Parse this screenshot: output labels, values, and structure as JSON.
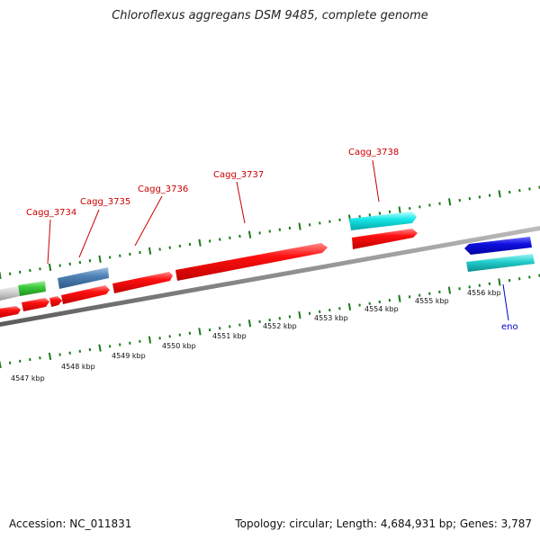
{
  "title": "Chloroflexus aggregans DSM 9485, complete genome",
  "footer": {
    "accession": "Accession: NC_011831",
    "topology": "Topology: circular; Length: 4,684,931 bp; Genes: 3,787"
  },
  "colors": {
    "cds": "#ff0000",
    "trna_like": "#00e5e5",
    "blue_gene": "#0000dd",
    "steel_gene": "#4a7db0",
    "green_gene": "#33cc33",
    "grey_gene": "#c8c8c8",
    "backbone": "#8a8a8a",
    "tick": "#1a7a1a",
    "locus_label": "#cc0000",
    "eno_label": "#0000cc"
  },
  "scale_labels": [
    "4547 kbp",
    "4548 kbp",
    "4549 kbp",
    "4550 kbp",
    "4551 kbp",
    "4552 kbp",
    "4553 kbp",
    "4554 kbp",
    "4555 kbp",
    "4556 kbp"
  ],
  "gene_labels": [
    "Cagg_3734",
    "Cagg_3735",
    "Cagg_3736",
    "Cagg_3737",
    "Cagg_3738",
    "eno"
  ]
}
